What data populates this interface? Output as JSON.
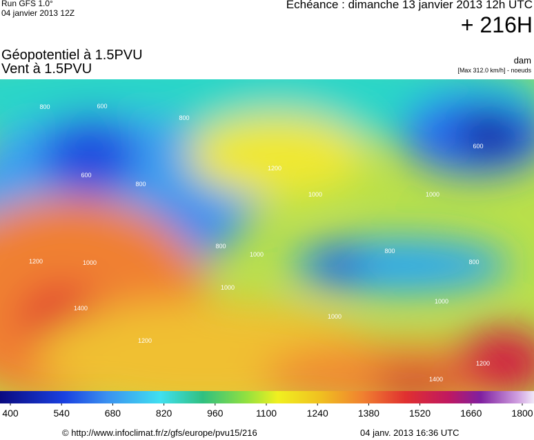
{
  "header": {
    "run": "Run GFS 1.0°",
    "run_date": "04 janvier 2013 12Z",
    "forecast": "Echéance : dimanche 13 janvier 2013 12h UTC",
    "lead": "+ 216H"
  },
  "titles": {
    "field": "Géopotentiel à 1.5PVU",
    "wind": "Vent à 1.5PVU",
    "unit": "dam",
    "max": "[Max 312.0 km/h] - noeuds"
  },
  "contour_labels": [
    600,
    600,
    600,
    800,
    800,
    800,
    800,
    800,
    800,
    1000,
    1000,
    1000,
    1000,
    1000,
    1000,
    1000,
    1200,
    1200,
    1200,
    1200,
    1400,
    1400
  ],
  "colorbar": {
    "range": [
      400,
      1800
    ],
    "ticks": [
      400,
      540,
      680,
      820,
      960,
      1100,
      1240,
      1380,
      1520,
      1660,
      1800
    ]
  },
  "footer": {
    "source": "© http://www.infoclimat.fr/z/gfs/europe/pvu15/216",
    "date": "04 janv. 2013 16:36 UTC"
  }
}
